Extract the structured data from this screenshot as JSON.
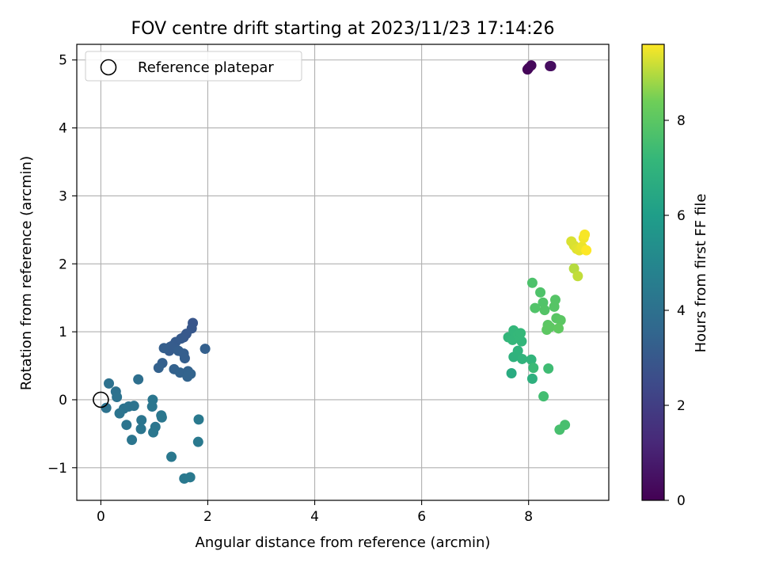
{
  "chart_data": {
    "type": "scatter",
    "title": "FOV centre drift starting at 2023/11/23 17:14:26",
    "xlabel": "Angular distance from reference (arcmin)",
    "ylabel": "Rotation from reference (arcmin)",
    "xlim": [
      -0.45,
      9.5
    ],
    "ylim": [
      -1.48,
      5.23
    ],
    "xticks": [
      0,
      2,
      4,
      6,
      8
    ],
    "yticks": [
      -1,
      0,
      1,
      2,
      3,
      4,
      5
    ],
    "grid": true,
    "legend": {
      "position": "top-left",
      "entries": [
        "Reference platepar"
      ]
    },
    "reference_point": {
      "x": 0,
      "y": 0
    },
    "colorbar": {
      "label": "Hours from first FF file",
      "colormap": "viridis",
      "range": [
        0,
        9.6
      ],
      "ticks": [
        0,
        2,
        4,
        6,
        8
      ]
    },
    "points": [
      {
        "x": 7.98,
        "y": 4.86,
        "c": 0.1
      },
      {
        "x": 8.0,
        "y": 4.88,
        "c": 0.15
      },
      {
        "x": 8.05,
        "y": 4.92,
        "c": 0.2
      },
      {
        "x": 8.4,
        "y": 4.91,
        "c": 0.3
      },
      {
        "x": 8.42,
        "y": 4.91,
        "c": 0.35
      },
      {
        "x": 1.72,
        "y": 1.13,
        "c": 2.9
      },
      {
        "x": 1.7,
        "y": 1.05,
        "c": 2.95
      },
      {
        "x": 1.6,
        "y": 0.97,
        "c": 3.0
      },
      {
        "x": 1.55,
        "y": 0.92,
        "c": 3.0
      },
      {
        "x": 1.5,
        "y": 0.9,
        "c": 3.05
      },
      {
        "x": 1.4,
        "y": 0.85,
        "c": 3.1
      },
      {
        "x": 1.35,
        "y": 0.8,
        "c": 3.1
      },
      {
        "x": 1.3,
        "y": 0.78,
        "c": 3.15
      },
      {
        "x": 1.28,
        "y": 0.72,
        "c": 3.15
      },
      {
        "x": 1.18,
        "y": 0.76,
        "c": 3.2
      },
      {
        "x": 1.45,
        "y": 0.72,
        "c": 3.2
      },
      {
        "x": 1.55,
        "y": 0.68,
        "c": 3.25
      },
      {
        "x": 1.57,
        "y": 0.61,
        "c": 3.25
      },
      {
        "x": 1.95,
        "y": 0.75,
        "c": 3.3
      },
      {
        "x": 1.15,
        "y": 0.54,
        "c": 3.3
      },
      {
        "x": 1.08,
        "y": 0.47,
        "c": 3.35
      },
      {
        "x": 1.37,
        "y": 0.45,
        "c": 3.35
      },
      {
        "x": 1.48,
        "y": 0.4,
        "c": 3.4
      },
      {
        "x": 1.63,
        "y": 0.42,
        "c": 3.4
      },
      {
        "x": 1.68,
        "y": 0.38,
        "c": 3.45
      },
      {
        "x": 1.62,
        "y": 0.34,
        "c": 3.45
      },
      {
        "x": 0.7,
        "y": 0.3,
        "c": 3.9
      },
      {
        "x": 0.15,
        "y": 0.24,
        "c": 4.0
      },
      {
        "x": 0.28,
        "y": 0.12,
        "c": 4.0
      },
      {
        "x": 0.3,
        "y": 0.04,
        "c": 4.05
      },
      {
        "x": 0.1,
        "y": -0.12,
        "c": 4.05
      },
      {
        "x": 0.43,
        "y": -0.13,
        "c": 4.1
      },
      {
        "x": 0.52,
        "y": -0.1,
        "c": 4.1
      },
      {
        "x": 0.62,
        "y": -0.09,
        "c": 4.1
      },
      {
        "x": 0.35,
        "y": -0.2,
        "c": 4.15
      },
      {
        "x": 0.48,
        "y": -0.37,
        "c": 4.15
      },
      {
        "x": 0.58,
        "y": -0.59,
        "c": 4.2
      },
      {
        "x": 0.76,
        "y": -0.3,
        "c": 4.2
      },
      {
        "x": 0.75,
        "y": -0.43,
        "c": 4.2
      },
      {
        "x": 0.97,
        "y": 0.0,
        "c": 4.25
      },
      {
        "x": 0.96,
        "y": -0.1,
        "c": 4.25
      },
      {
        "x": 1.02,
        "y": -0.4,
        "c": 4.25
      },
      {
        "x": 0.98,
        "y": -0.48,
        "c": 4.3
      },
      {
        "x": 1.13,
        "y": -0.23,
        "c": 4.3
      },
      {
        "x": 1.14,
        "y": -0.26,
        "c": 4.3
      },
      {
        "x": 1.32,
        "y": -0.84,
        "c": 4.35
      },
      {
        "x": 1.56,
        "y": -1.16,
        "c": 4.35
      },
      {
        "x": 1.67,
        "y": -1.14,
        "c": 4.4
      },
      {
        "x": 1.83,
        "y": -0.29,
        "c": 4.4
      },
      {
        "x": 1.82,
        "y": -0.62,
        "c": 4.4
      },
      {
        "x": 7.68,
        "y": 0.39,
        "c": 6.6
      },
      {
        "x": 8.07,
        "y": 0.31,
        "c": 6.8
      },
      {
        "x": 7.72,
        "y": 0.63,
        "c": 6.9
      },
      {
        "x": 7.8,
        "y": 0.72,
        "c": 6.95
      },
      {
        "x": 7.88,
        "y": 0.6,
        "c": 7.0
      },
      {
        "x": 8.05,
        "y": 0.59,
        "c": 7.05
      },
      {
        "x": 7.87,
        "y": 0.86,
        "c": 7.1
      },
      {
        "x": 7.62,
        "y": 0.92,
        "c": 7.1
      },
      {
        "x": 7.7,
        "y": 0.88,
        "c": 7.15
      },
      {
        "x": 7.72,
        "y": 1.02,
        "c": 7.15
      },
      {
        "x": 7.8,
        "y": 0.95,
        "c": 7.2
      },
      {
        "x": 7.85,
        "y": 0.98,
        "c": 7.2
      },
      {
        "x": 8.09,
        "y": 0.47,
        "c": 7.3
      },
      {
        "x": 8.37,
        "y": 0.46,
        "c": 7.4
      },
      {
        "x": 8.28,
        "y": 0.05,
        "c": 7.5
      },
      {
        "x": 8.58,
        "y": -0.44,
        "c": 7.6
      },
      {
        "x": 8.68,
        "y": -0.37,
        "c": 7.6
      },
      {
        "x": 8.07,
        "y": 1.72,
        "c": 7.7
      },
      {
        "x": 8.22,
        "y": 1.58,
        "c": 7.75
      },
      {
        "x": 8.27,
        "y": 1.43,
        "c": 7.8
      },
      {
        "x": 8.12,
        "y": 1.35,
        "c": 7.8
      },
      {
        "x": 8.3,
        "y": 1.32,
        "c": 7.85
      },
      {
        "x": 8.5,
        "y": 1.47,
        "c": 7.9
      },
      {
        "x": 8.48,
        "y": 1.37,
        "c": 7.9
      },
      {
        "x": 8.52,
        "y": 1.2,
        "c": 7.95
      },
      {
        "x": 8.6,
        "y": 1.17,
        "c": 8.0
      },
      {
        "x": 8.36,
        "y": 1.1,
        "c": 8.0
      },
      {
        "x": 8.4,
        "y": 1.07,
        "c": 8.05
      },
      {
        "x": 8.34,
        "y": 1.03,
        "c": 8.05
      },
      {
        "x": 8.56,
        "y": 1.05,
        "c": 8.1
      },
      {
        "x": 8.85,
        "y": 1.93,
        "c": 9.0
      },
      {
        "x": 8.92,
        "y": 1.82,
        "c": 9.1
      },
      {
        "x": 8.8,
        "y": 2.33,
        "c": 9.3
      },
      {
        "x": 8.85,
        "y": 2.27,
        "c": 9.3
      },
      {
        "x": 8.9,
        "y": 2.22,
        "c": 9.35
      },
      {
        "x": 8.95,
        "y": 2.2,
        "c": 9.4
      },
      {
        "x": 9.0,
        "y": 2.25,
        "c": 9.45
      },
      {
        "x": 9.03,
        "y": 2.38,
        "c": 9.5
      },
      {
        "x": 9.05,
        "y": 2.43,
        "c": 9.55
      },
      {
        "x": 9.08,
        "y": 2.2,
        "c": 9.6
      }
    ]
  }
}
